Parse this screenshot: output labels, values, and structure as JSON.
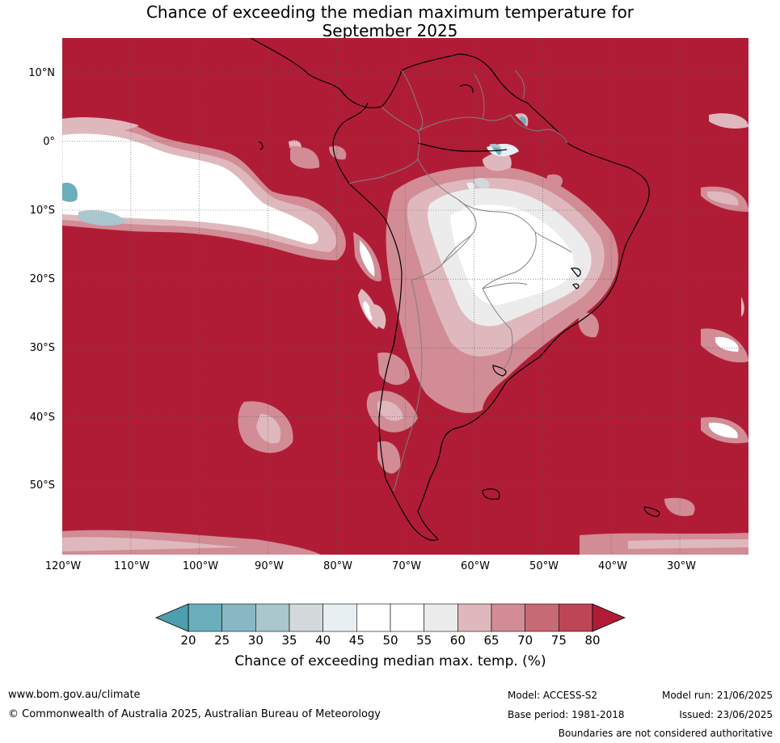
{
  "title": {
    "line1": "Chance of exceeding the median maximum temperature for",
    "line2": "September 2025"
  },
  "axes": {
    "lon_labels": [
      "120°W",
      "110°W",
      "100°W",
      "90°W",
      "80°W",
      "70°W",
      "60°W",
      "50°W",
      "40°W",
      "30°W"
    ],
    "lon_values": [
      -120,
      -110,
      -100,
      -90,
      -80,
      -70,
      -60,
      -50,
      -40,
      -30
    ],
    "lat_labels": [
      "10°N",
      "0°",
      "10°S",
      "20°S",
      "30°S",
      "40°S",
      "50°S"
    ],
    "lat_values": [
      10,
      0,
      -10,
      -20,
      -30,
      -40,
      -50
    ],
    "lon_range": [
      -120,
      -20
    ],
    "lat_range": [
      -60,
      15
    ]
  },
  "colorbar": {
    "ticks": [
      "20",
      "25",
      "30",
      "35",
      "40",
      "45",
      "50",
      "55",
      "60",
      "65",
      "70",
      "75",
      "80"
    ],
    "colors": [
      "#6aaebc",
      "#8ab7c4",
      "#a9c7cd",
      "#d3d9db",
      "#e8eff2",
      "#ffffff",
      "#ffffff",
      "#ececec",
      "#dfb8bd",
      "#d18c95",
      "#c66a74",
      "#bd4555"
    ],
    "low_extend_color": "#4d9eae",
    "high_extend_color": "#b01c36",
    "label": "Chance of exceeding median max. temp. (%)"
  },
  "colors": {
    "ocean_high": "#b01c36",
    "coast": "#000000",
    "borders": "#808080"
  },
  "footer": {
    "website": "www.bom.gov.au/climate",
    "copyright": "© Commonwealth of Australia 2025, Australian Bureau of Meteorology",
    "model": "Model: ACCESS-S2",
    "base_period": "Base period: 1981-2018",
    "model_run": "Model run: 21/06/2025",
    "issued": "Issued: 23/06/2025",
    "disclaimer": "Boundaries are not considered authoritative"
  }
}
